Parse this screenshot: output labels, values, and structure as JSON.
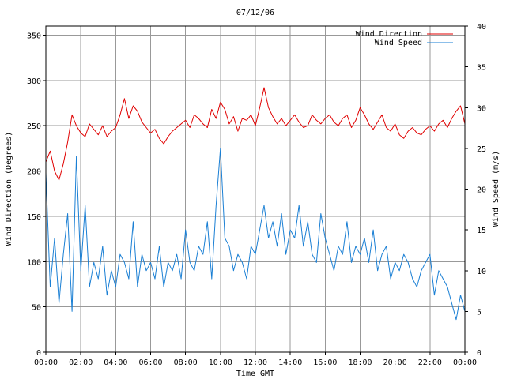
{
  "chart_data": {
    "type": "line",
    "title": "07/12/06",
    "xlabel": "Time GMT",
    "ylabel_left": "Wind Direction (Degrees)",
    "ylabel_right": "Wind Speed (m/s)",
    "x_unit": "hours GMT",
    "xlim": [
      0,
      24
    ],
    "ylim_left": [
      0,
      360
    ],
    "ylim_right": [
      0,
      40
    ],
    "x_ticks": [
      "00:00",
      "02:00",
      "04:00",
      "06:00",
      "08:00",
      "10:00",
      "12:00",
      "14:00",
      "16:00",
      "18:00",
      "20:00",
      "22:00",
      "00:00"
    ],
    "y_ticks_left": [
      "0",
      "50",
      "100",
      "150",
      "200",
      "250",
      "300",
      "350"
    ],
    "y_ticks_right": [
      "0",
      "5",
      "10",
      "15",
      "20",
      "25",
      "30",
      "35",
      "40"
    ],
    "grid": true,
    "legend_position": "top-right",
    "series": [
      {
        "name": "Wind Direction",
        "axis": "left",
        "color": "#e00000",
        "x": [
          0,
          0.25,
          0.5,
          0.75,
          1,
          1.25,
          1.5,
          1.75,
          2,
          2.25,
          2.5,
          2.75,
          3,
          3.25,
          3.5,
          3.75,
          4,
          4.25,
          4.5,
          4.75,
          5,
          5.25,
          5.5,
          5.75,
          6,
          6.25,
          6.5,
          6.75,
          7,
          7.25,
          7.5,
          7.75,
          8,
          8.25,
          8.5,
          8.75,
          9,
          9.25,
          9.5,
          9.75,
          10,
          10.25,
          10.5,
          10.75,
          11,
          11.25,
          11.5,
          11.75,
          12,
          12.25,
          12.5,
          12.75,
          13,
          13.25,
          13.5,
          13.75,
          14,
          14.25,
          14.5,
          14.75,
          15,
          15.25,
          15.5,
          15.75,
          16,
          16.25,
          16.5,
          16.75,
          17,
          17.25,
          17.5,
          17.75,
          18,
          18.25,
          18.5,
          18.75,
          19,
          19.25,
          19.5,
          19.75,
          20,
          20.25,
          20.5,
          20.75,
          21,
          21.25,
          21.5,
          21.75,
          22,
          22.25,
          22.5,
          22.75,
          23,
          23.25,
          23.5,
          23.75,
          24
        ],
        "values": [
          210,
          222,
          200,
          190,
          208,
          232,
          262,
          250,
          242,
          238,
          252,
          246,
          240,
          250,
          238,
          244,
          248,
          262,
          280,
          258,
          272,
          266,
          254,
          248,
          242,
          246,
          236,
          230,
          238,
          244,
          248,
          252,
          256,
          248,
          262,
          258,
          252,
          248,
          268,
          258,
          276,
          268,
          252,
          260,
          244,
          258,
          256,
          262,
          250,
          270,
          292,
          270,
          260,
          252,
          258,
          250,
          256,
          262,
          254,
          248,
          250,
          262,
          256,
          252,
          258,
          262,
          254,
          250,
          258,
          262,
          248,
          256,
          270,
          262,
          252,
          246,
          254,
          262,
          248,
          244,
          252,
          240,
          236,
          244,
          248,
          242,
          240,
          246,
          250,
          244,
          252,
          256,
          248,
          258,
          266,
          272,
          252
        ]
      },
      {
        "name": "Wind Speed",
        "axis": "right",
        "color": "#1a7fd4",
        "x": [
          0,
          0.25,
          0.5,
          0.75,
          1,
          1.25,
          1.5,
          1.75,
          2,
          2.25,
          2.5,
          2.75,
          3,
          3.25,
          3.5,
          3.75,
          4,
          4.25,
          4.5,
          4.75,
          5,
          5.25,
          5.5,
          5.75,
          6,
          6.25,
          6.5,
          6.75,
          7,
          7.25,
          7.5,
          7.75,
          8,
          8.25,
          8.5,
          8.75,
          9,
          9.25,
          9.5,
          9.75,
          10,
          10.25,
          10.5,
          10.75,
          11,
          11.25,
          11.5,
          11.75,
          12,
          12.25,
          12.5,
          12.75,
          13,
          13.25,
          13.5,
          13.75,
          14,
          14.25,
          14.5,
          14.75,
          15,
          15.25,
          15.5,
          15.75,
          16,
          16.25,
          16.5,
          16.75,
          17,
          17.25,
          17.5,
          17.75,
          18,
          18.25,
          18.5,
          18.75,
          19,
          19.25,
          19.5,
          19.75,
          20,
          20.25,
          20.5,
          20.75,
          21,
          21.25,
          21.5,
          21.75,
          22,
          22.25,
          22.5,
          22.75,
          23,
          23.25,
          23.5,
          23.75,
          24
        ],
        "values": [
          22,
          8,
          14,
          6,
          12,
          17,
          5,
          24,
          10,
          18,
          8,
          11,
          9,
          13,
          7,
          10,
          8,
          12,
          11,
          9,
          16,
          8,
          12,
          10,
          11,
          9,
          13,
          8,
          11,
          10,
          12,
          9,
          15,
          11,
          10,
          13,
          12,
          16,
          9,
          18,
          25,
          14,
          13,
          10,
          12,
          11,
          9,
          13,
          12,
          15,
          18,
          14,
          16,
          13,
          17,
          12,
          15,
          14,
          18,
          13,
          16,
          12,
          11,
          17,
          14,
          12,
          10,
          13,
          12,
          16,
          11,
          13,
          12,
          14,
          11,
          15,
          10,
          12,
          13,
          9,
          11,
          10,
          12,
          11,
          9,
          8,
          10,
          11,
          12,
          7,
          10,
          9,
          8,
          6,
          4,
          7,
          5
        ]
      }
    ]
  }
}
